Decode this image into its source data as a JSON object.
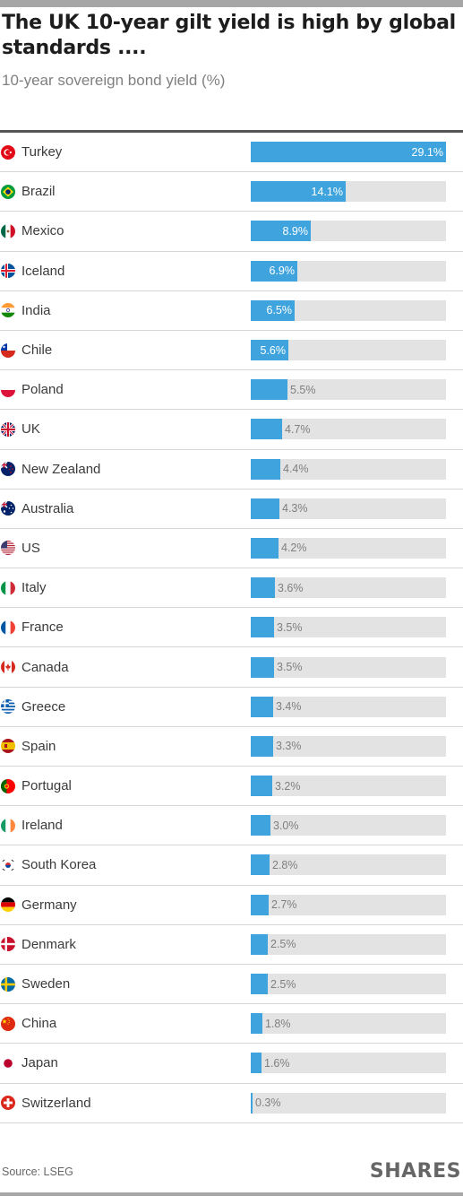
{
  "title": "The UK 10-year gilt yield is high by global standards ....",
  "subtitle": "10-year sovereign bond yield (%)",
  "source": "Source: LSEG",
  "brand": "SHARES",
  "colors": {
    "bar": "#3fa4de",
    "track": "#e3e3e3",
    "label_inside": "#ffffff",
    "label_outside": "#7f7f7f",
    "frame": "#a6a6a6"
  },
  "chart_data": {
    "type": "bar",
    "orientation": "horizontal",
    "title": "The UK 10-year gilt yield is high by global standards ....",
    "subtitle": "10-year sovereign bond yield (%)",
    "xlim": [
      0,
      29.1
    ],
    "grid": false,
    "categories": [
      "Turkey",
      "Brazil",
      "Mexico",
      "Iceland",
      "India",
      "Chile",
      "Poland",
      "UK",
      "New Zealand",
      "Australia",
      "US",
      "Italy",
      "France",
      "Canada",
      "Greece",
      "Spain",
      "Portugal",
      "Ireland",
      "South Korea",
      "Germany",
      "Denmark",
      "Sweden",
      "China",
      "Japan",
      "Switzerland"
    ],
    "values": [
      29.1,
      14.1,
      8.9,
      6.9,
      6.5,
      5.6,
      5.5,
      4.7,
      4.4,
      4.3,
      4.2,
      3.6,
      3.5,
      3.5,
      3.4,
      3.3,
      3.2,
      3.0,
      2.8,
      2.7,
      2.5,
      2.5,
      1.8,
      1.6,
      0.3
    ],
    "data_labels": [
      "29.1%",
      "14.1%",
      "8.9%",
      "6.9%",
      "6.5%",
      "5.6%",
      "5.5%",
      "4.7%",
      "4.4%",
      "4.3%",
      "4.2%",
      "3.6%",
      "3.5%",
      "3.5%",
      "3.4%",
      "3.3%",
      "3.2%",
      "3.0%",
      "2.8%",
      "2.7%",
      "2.5%",
      "2.5%",
      "1.8%",
      "1.6%",
      "0.3%"
    ],
    "flag_icons": [
      "turkey-flag-icon",
      "brazil-flag-icon",
      "mexico-flag-icon",
      "iceland-flag-icon",
      "india-flag-icon",
      "chile-flag-icon",
      "poland-flag-icon",
      "uk-flag-icon",
      "new-zealand-flag-icon",
      "australia-flag-icon",
      "us-flag-icon",
      "italy-flag-icon",
      "france-flag-icon",
      "canada-flag-icon",
      "greece-flag-icon",
      "spain-flag-icon",
      "portugal-flag-icon",
      "ireland-flag-icon",
      "south-korea-flag-icon",
      "germany-flag-icon",
      "denmark-flag-icon",
      "sweden-flag-icon",
      "china-flag-icon",
      "japan-flag-icon",
      "switzerland-flag-icon"
    ]
  }
}
